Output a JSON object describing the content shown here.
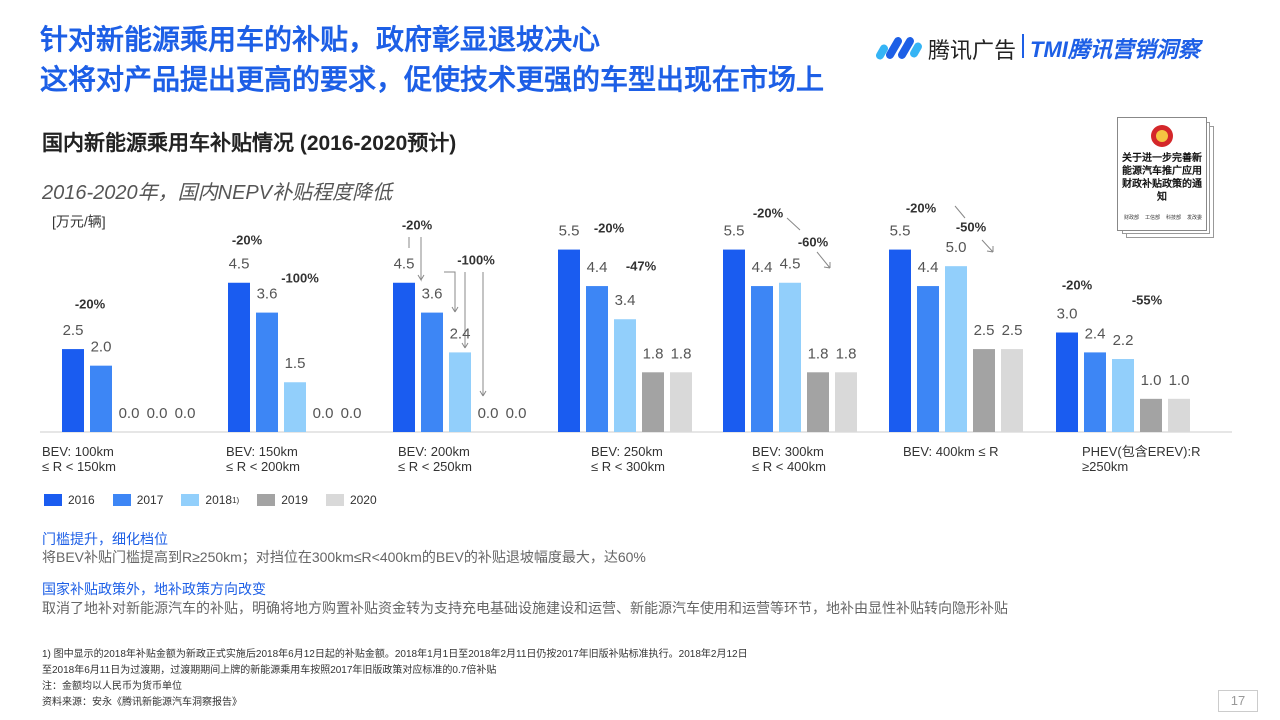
{
  "slide": {
    "title_lines": [
      "针对新能源乘用车的补贴，政府彰显退坡决心",
      "这将对产品提出更高的要求，促使技术更强的车型出现在市场上"
    ],
    "logo": {
      "brand": "腾讯广告",
      "sub": "TMI腾讯营销洞察"
    },
    "subtitle": "国内新能源乘用车补贴情况 (2016-2020预计)",
    "caption": "2016-2020年，国内NEPV补贴程度降低",
    "document": {
      "title": "关于进一步完善新能源汽车推广应用财政补贴政策的通知",
      "issuers": [
        "财政部",
        "工信部",
        "科技部",
        "发改委"
      ]
    },
    "sections": [
      {
        "heading": "门槛提升，细化档位",
        "text": "将BEV补贴门槛提高到R≥250km；对挡位在300km≤R<400km的BEV的补贴退坡幅度最大，达60%"
      },
      {
        "heading": "国家补贴政策外，地补政策方向改变",
        "text": "取消了地补对新能源汽车的补贴，明确将地方购置补贴资金转为支持充电基础设施建设和运营、新能源汽车使用和运营等环节，地补由显性补贴转向隐形补贴"
      }
    ],
    "footnotes": [
      "1) 图中显示的2018年补贴金额为新政正式实施后2018年6月12日起的补贴金额。2018年1月1日至2018年2月11日仍按2017年旧版补贴标准执行。2018年2月12日",
      "至2018年6月11日为过渡期，过渡期期间上牌的新能源乘用车按照2017年旧版政策对应标准的0.7倍补贴",
      "注：金额均以人民币为货币单位",
      "资料来源：安永《腾讯新能源汽车洞察报告》"
    ],
    "page_number": "17"
  },
  "chart_data": {
    "type": "bar",
    "unit_label": "[万元/辆]",
    "categories": [
      "BEV: 100km\n≤ R < 150km",
      "BEV: 150km\n≤ R < 200km",
      "BEV: 200km\n≤ R < 250km",
      "BEV: 250km\n≤ R < 300km",
      "BEV: 300km\n≤ R < 400km",
      "BEV: 400km ≤ R",
      "PHEV(包含EREV):R\n≥250km"
    ],
    "series": [
      {
        "name": "2016",
        "color": "#1a5cf0",
        "values": [
          2.5,
          4.5,
          4.5,
          5.5,
          5.5,
          5.5,
          3
        ],
        "value_labels": [
          "2.5",
          "4.5",
          "4.5",
          "5.5",
          "5.5",
          "5.5",
          "3.0"
        ]
      },
      {
        "name": "2017",
        "color": "#3d86f5",
        "values": [
          2,
          3.6,
          3.6,
          4.4,
          4.4,
          4.4,
          2.4
        ],
        "value_labels": [
          "2.0",
          "3.6",
          "3.6",
          "4.4",
          "4.4",
          "4.4",
          "2.4"
        ]
      },
      {
        "name": "2018",
        "color": "#92cffb",
        "values": [
          0,
          1.5,
          2.4,
          3.4,
          4.5,
          5,
          2.2
        ],
        "value_labels": [
          "0.0",
          "1.5",
          "2.4",
          "3.4",
          "4.5",
          "5.0",
          "2.2"
        ]
      },
      {
        "name": "2019",
        "color": "#a3a3a3",
        "values": [
          0,
          0,
          0,
          1.8,
          1.8,
          2.5,
          1
        ],
        "value_labels": [
          "0.0",
          "0.0",
          "0.0",
          "1.8",
          "1.8",
          "2.5",
          "1.0"
        ]
      },
      {
        "name": "2020",
        "color": "#d9d9d9",
        "values": [
          0,
          0,
          0,
          1.8,
          1.8,
          2.5,
          1
        ],
        "value_labels": [
          "0.0",
          "0.0",
          "0.0",
          "1.8",
          "1.8",
          "2.5",
          "1.0"
        ]
      }
    ],
    "legend_note": "1)",
    "ylim": [
      0,
      6
    ],
    "annotations": [
      "-20%",
      "-20%",
      "-100%",
      "-20%",
      "-100%",
      "-20%",
      "-47%",
      "-20%",
      "-60%",
      "-20%",
      "-50%",
      "-20%",
      "-55%"
    ]
  }
}
